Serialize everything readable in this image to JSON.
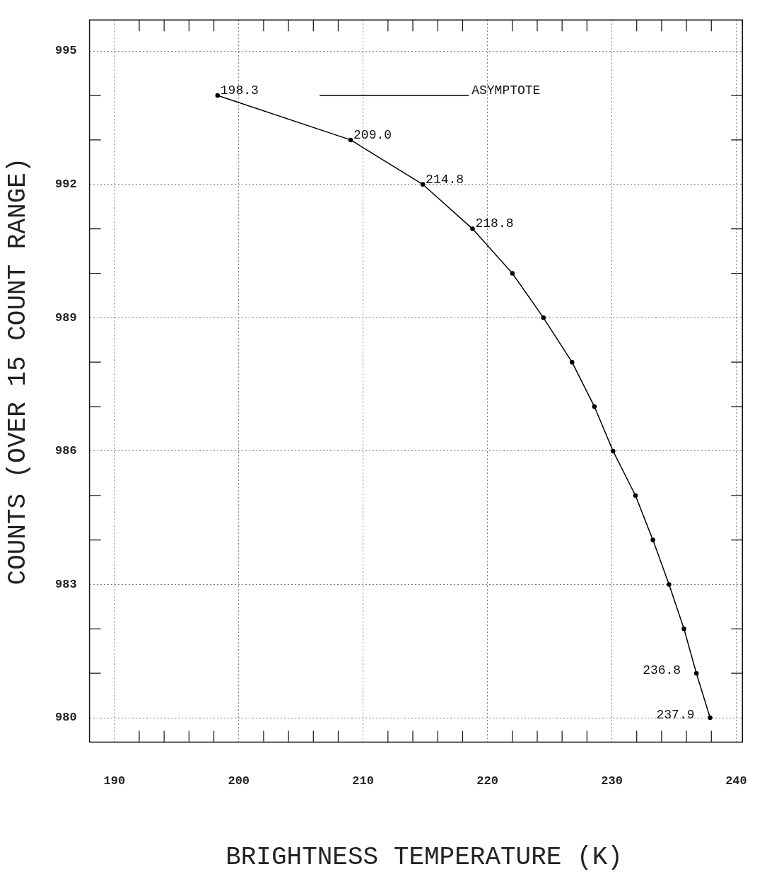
{
  "chart_data": {
    "type": "line",
    "xlabel": "BRIGHTNESS TEMPERATURE (K)",
    "ylabel": "COUNTS (OVER 15 COUNT RANGE)",
    "xlim": [
      188,
      240.5
    ],
    "ylim": [
      979.45,
      995.7
    ],
    "xticks": [
      {
        "value": 190,
        "label": "190"
      },
      {
        "value": 192,
        "label": null
      },
      {
        "value": 194,
        "label": null
      },
      {
        "value": 196,
        "label": null
      },
      {
        "value": 198,
        "label": null
      },
      {
        "value": 200,
        "label": "200"
      },
      {
        "value": 202,
        "label": null
      },
      {
        "value": 204,
        "label": null
      },
      {
        "value": 206,
        "label": null
      },
      {
        "value": 208,
        "label": null
      },
      {
        "value": 210,
        "label": "210"
      },
      {
        "value": 212,
        "label": null
      },
      {
        "value": 214,
        "label": null
      },
      {
        "value": 216,
        "label": null
      },
      {
        "value": 218,
        "label": null
      },
      {
        "value": 220,
        "label": "220"
      },
      {
        "value": 222,
        "label": null
      },
      {
        "value": 224,
        "label": null
      },
      {
        "value": 226,
        "label": null
      },
      {
        "value": 228,
        "label": null
      },
      {
        "value": 230,
        "label": "230"
      },
      {
        "value": 232,
        "label": null
      },
      {
        "value": 234,
        "label": null
      },
      {
        "value": 236,
        "label": null
      },
      {
        "value": 238,
        "label": null
      },
      {
        "value": 240,
        "label": "240"
      }
    ],
    "yticks": [
      {
        "value": 980,
        "label": "980"
      },
      {
        "value": 981,
        "label": null
      },
      {
        "value": 982,
        "label": null
      },
      {
        "value": 983,
        "label": "983"
      },
      {
        "value": 984,
        "label": null
      },
      {
        "value": 985,
        "label": null
      },
      {
        "value": 986,
        "label": "986"
      },
      {
        "value": 987,
        "label": null
      },
      {
        "value": 988,
        "label": null
      },
      {
        "value": 989,
        "label": "989"
      },
      {
        "value": 990,
        "label": null
      },
      {
        "value": 991,
        "label": null
      },
      {
        "value": 992,
        "label": "992"
      },
      {
        "value": 993,
        "label": null
      },
      {
        "value": 994,
        "label": null
      },
      {
        "value": 995,
        "label": "995"
      }
    ],
    "grid": true,
    "series": [
      {
        "color": "#000000",
        "marker": "circle",
        "x": [
          198.3,
          209.0,
          214.8,
          218.8,
          222.0,
          224.5,
          226.8,
          228.6,
          230.1,
          231.9,
          233.3,
          234.6,
          235.8,
          236.8,
          237.9
        ],
        "values": [
          994,
          993,
          992,
          991,
          990,
          989,
          988,
          987,
          986,
          985,
          984,
          983,
          982,
          981,
          980
        ]
      },
      {
        "color": "#000000",
        "marker": "none",
        "x": [
          206.5,
          218.5
        ],
        "values": [
          994,
          994
        ]
      }
    ],
    "annotations": [
      {
        "text": "198.3",
        "x": 198.3,
        "y": 994
      },
      {
        "text": "209.0",
        "x": 209.0,
        "y": 993
      },
      {
        "text": "214.8",
        "x": 214.8,
        "y": 992
      },
      {
        "text": "218.8",
        "x": 218.8,
        "y": 991
      },
      {
        "text": "236.8",
        "x": 236.8,
        "y": 981
      },
      {
        "text": "237.9",
        "x": 237.9,
        "y": 980
      },
      {
        "text": "ASYMPTOTE",
        "x": 218.5,
        "y": 994
      }
    ]
  }
}
